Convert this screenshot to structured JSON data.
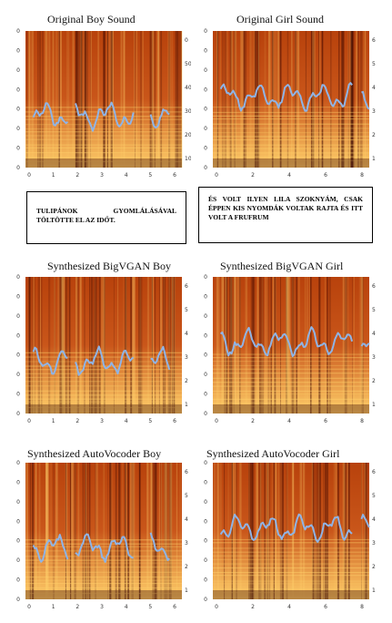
{
  "figure": {
    "titles": {
      "orig_boy": "Original Boy Sound",
      "orig_girl": "Original Girl Sound",
      "big_boy": "Synthesized BigVGAN Boy",
      "big_girl": "Synthesized BigVGAN Girl",
      "auto_boy": "Synthesized AutoVocoder Boy",
      "auto_girl": "Synthesized AutoVocoder Girl"
    },
    "texts": {
      "boy": "TULIPÁNOK GYOMLÁLÁSÁVAL TÖLTÖTTE EL AZ IDŐT.",
      "girl": "ÉS VOLT ILYEN LILA SZOKNYÁM, CSAK ÉPPEN KIS NYOMDÁK VOLTAK RAJTA ÉS ITT VOLT A FRUFRUM"
    },
    "axes": {
      "boy_x_ticks": [
        "0",
        "1",
        "2",
        "3",
        "4",
        "5",
        "6"
      ],
      "girl_x_ticks": [
        "0",
        "2",
        "4",
        "6",
        "8"
      ],
      "left_y_ticks": [
        "0",
        "0",
        "0",
        "0",
        "0",
        "0",
        "0",
        "0"
      ],
      "right_y_ticks": [
        "0",
        "500",
        "400",
        "300",
        "200",
        "100"
      ],
      "right_y_ticks_small": [
        "6",
        "5",
        "4",
        "3",
        "2",
        "1"
      ]
    },
    "colors": {
      "spec_dark": "#3a0600",
      "spec_mid": "#b8420c",
      "spec_bright": "#ffcf6a",
      "pitch": "#8fb4e6"
    }
  }
}
